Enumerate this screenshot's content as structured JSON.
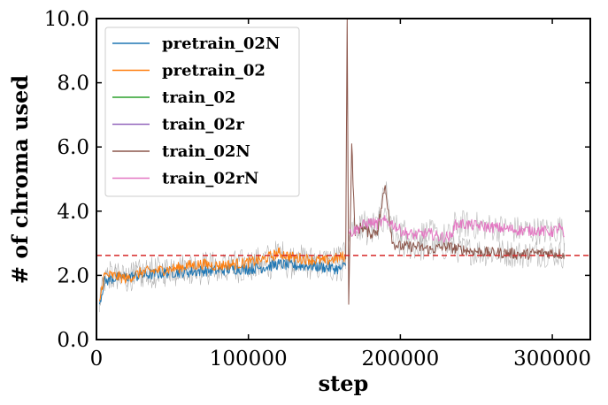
{
  "chart_data": {
    "type": "line",
    "xlabel": "step",
    "ylabel": "# of chroma used",
    "xlim": [
      0,
      325000
    ],
    "ylim": [
      0,
      10
    ],
    "xticks": [
      0,
      100000,
      200000,
      300000
    ],
    "xtick_labels": [
      "0",
      "100000",
      "200000",
      "300000"
    ],
    "yticks": [
      0,
      2,
      4,
      6,
      8,
      10
    ],
    "ytick_labels": [
      "0.0",
      "2.0",
      "4.0",
      "6.0",
      "8.0",
      "10.0"
    ],
    "legend_position": "top-left",
    "reference_line": {
      "y": 2.62,
      "color": "#d62728",
      "style": "dashed"
    },
    "series": [
      {
        "name": "pretrain_02N",
        "color": "#1f77b4",
        "x": [
          2000,
          5000,
          10000,
          20000,
          30000,
          40000,
          50000,
          60000,
          70000,
          80000,
          90000,
          100000,
          110000,
          120000,
          130000,
          140000,
          150000,
          160000,
          164000
        ],
        "y": [
          1.1,
          1.8,
          1.9,
          1.95,
          2.0,
          2.05,
          2.1,
          2.1,
          2.15,
          2.15,
          2.2,
          2.2,
          2.25,
          2.35,
          2.3,
          2.3,
          2.25,
          2.2,
          2.3
        ]
      },
      {
        "name": "pretrain_02",
        "color": "#ff7f0e",
        "x": [
          2000,
          5000,
          10000,
          20000,
          30000,
          40000,
          50000,
          60000,
          70000,
          80000,
          90000,
          100000,
          110000,
          120000,
          130000,
          140000,
          150000,
          160000,
          164000
        ],
        "y": [
          1.2,
          2.0,
          2.0,
          1.9,
          2.1,
          2.15,
          2.2,
          2.3,
          2.35,
          2.3,
          2.35,
          2.4,
          2.5,
          2.7,
          2.55,
          2.5,
          2.45,
          2.55,
          2.6
        ]
      },
      {
        "name": "train_02",
        "color": "#2ca02c",
        "x": [],
        "y": []
      },
      {
        "name": "train_02r",
        "color": "#9467bd",
        "x": [],
        "y": []
      },
      {
        "name": "train_02N",
        "color": "#8c564b",
        "x": [
          164000,
          165000,
          166000,
          168000,
          170000,
          175000,
          180000,
          185000,
          190000,
          195000,
          200000,
          210000,
          220000,
          230000,
          240000,
          250000,
          260000,
          270000,
          280000,
          290000,
          300000,
          308000
        ],
        "y": [
          2.5,
          10.0,
          1.1,
          6.1,
          3.4,
          3.5,
          3.3,
          3.4,
          4.8,
          3.0,
          2.9,
          2.9,
          2.8,
          2.9,
          2.8,
          2.75,
          2.7,
          2.7,
          2.65,
          2.7,
          2.7,
          2.65
        ]
      },
      {
        "name": "train_02rN",
        "color": "#e377c2",
        "x": [
          166000,
          170000,
          175000,
          180000,
          185000,
          190000,
          195000,
          200000,
          205000,
          210000,
          215000,
          220000,
          225000,
          230000,
          234000,
          235000,
          240000,
          250000,
          260000,
          270000,
          280000,
          290000,
          300000,
          305000,
          308000
        ],
        "y": [
          3.3,
          3.4,
          3.55,
          3.65,
          3.6,
          3.7,
          3.6,
          3.4,
          3.3,
          3.25,
          3.3,
          3.3,
          3.2,
          3.2,
          3.2,
          3.55,
          3.6,
          3.55,
          3.5,
          3.45,
          3.4,
          3.4,
          3.35,
          3.5,
          3.2
        ]
      }
    ]
  }
}
